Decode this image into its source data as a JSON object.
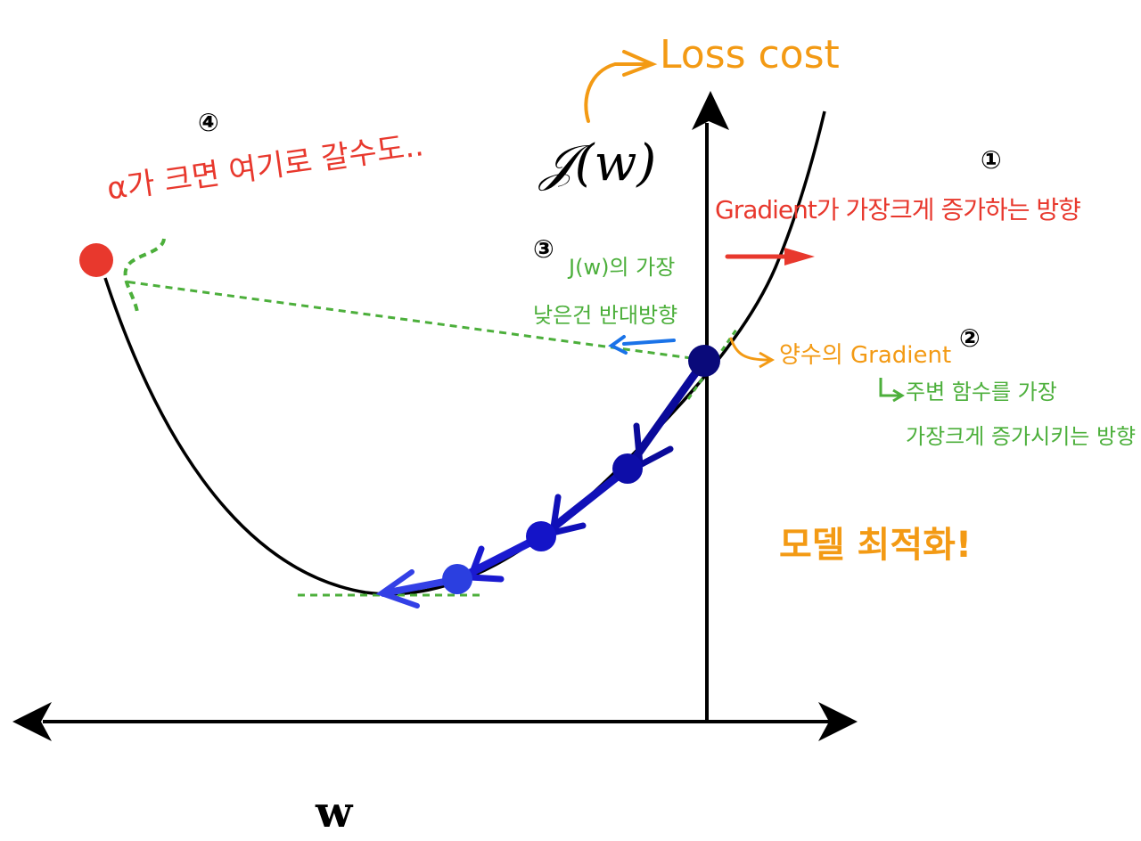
{
  "axes": {
    "y_label": "𝒥(w)",
    "x_label": "w"
  },
  "annotations": {
    "loss_cost": "Loss cost",
    "step1_num": "①",
    "step1_text": "Gradient가 가장크게 증가하는 방향",
    "step2_num": "②",
    "step2_text": "양수의 Gradient",
    "step2_sub1": "주변 함수를 가장",
    "step2_sub2": "가장크게 증가시키는 방향",
    "step3_num": "③",
    "step3_line1": "J(w)의 가장",
    "step3_line2": "낮은건 반대방향",
    "step4_num": "④",
    "step4_text": "α가 크면 여기로 갈수도..",
    "model_opt": "모델 최적화!"
  },
  "colors": {
    "curve": "#000000",
    "orange": "#f39a14",
    "red": "#e8382d",
    "green": "#4caf3b",
    "blue": "#1a73e8",
    "dark_blue": "#0a0a7a",
    "step_blue": "#1010b8",
    "light_blue": "#2b3fe0",
    "red_dot": "#e8382d"
  }
}
